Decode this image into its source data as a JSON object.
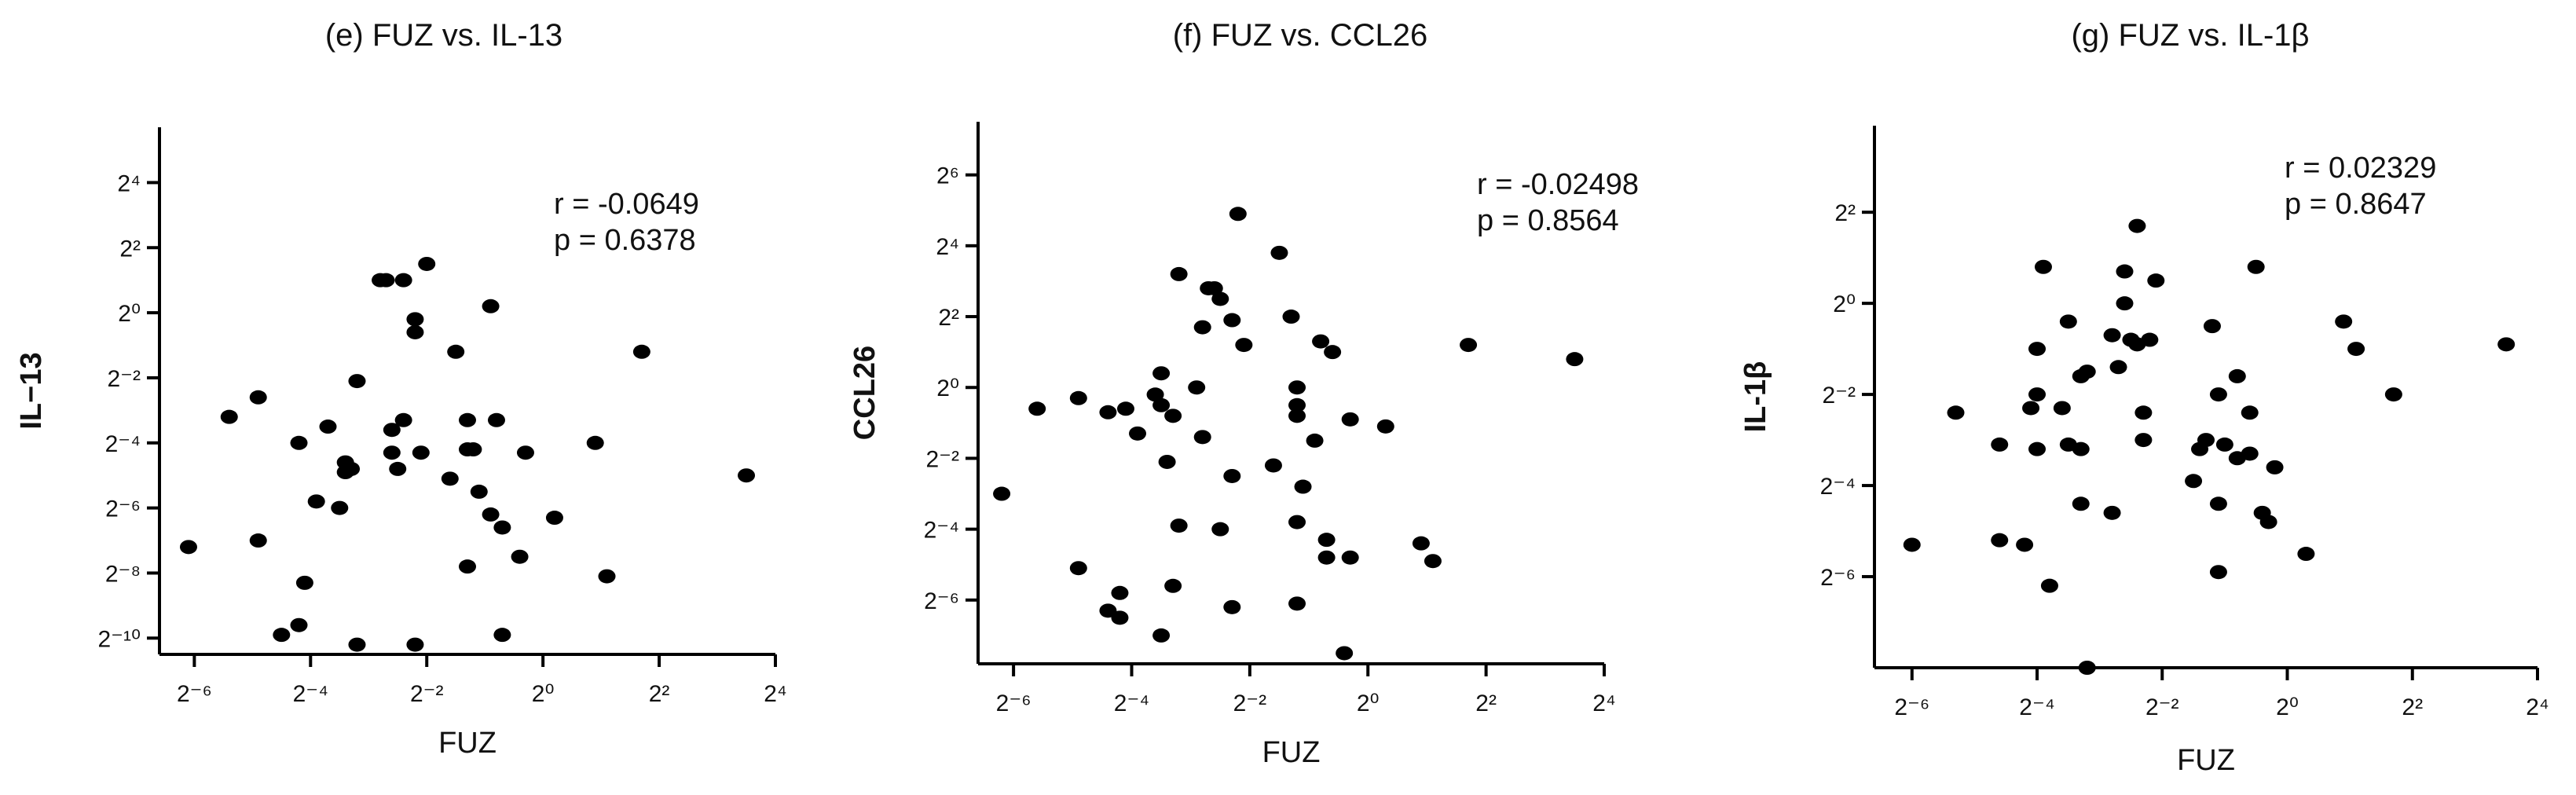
{
  "colors": {
    "point": "#000000",
    "axis": "#000000",
    "text": "#111111",
    "background": "#ffffff"
  },
  "chart_data": [
    {
      "type": "scatter",
      "title": "(e) FUZ vs. IL-13",
      "xlabel": "FUZ",
      "ylabel": "IL−13",
      "x_scale": "log2",
      "y_scale": "log2",
      "xlim_log2": [
        -6.6,
        4
      ],
      "ylim_log2": [
        -10.5,
        5.7
      ],
      "x_ticks": [
        {
          "exp": -6,
          "label": "2⁻⁶"
        },
        {
          "exp": -4,
          "label": "2⁻⁴"
        },
        {
          "exp": -2,
          "label": "2⁻²"
        },
        {
          "exp": 0,
          "label": "2⁰"
        },
        {
          "exp": 2,
          "label": "2²"
        },
        {
          "exp": 4,
          "label": "2⁴"
        }
      ],
      "y_ticks": [
        {
          "exp": 4,
          "label": "2⁴"
        },
        {
          "exp": 2,
          "label": "2²"
        },
        {
          "exp": 0,
          "label": "2⁰"
        },
        {
          "exp": -2,
          "label": "2⁻²"
        },
        {
          "exp": -4,
          "label": "2⁻⁴"
        },
        {
          "exp": -6,
          "label": "2⁻⁶"
        },
        {
          "exp": -8,
          "label": "2⁻⁸"
        },
        {
          "exp": -10,
          "label": "2⁻¹⁰"
        }
      ],
      "annotation": [
        "r = -0.0649",
        "p = 0.6378"
      ],
      "points_log2": [
        [
          -6.1,
          -7.2
        ],
        [
          -5.4,
          -3.2
        ],
        [
          -4.9,
          -7.0
        ],
        [
          -4.9,
          -2.6
        ],
        [
          -4.5,
          -9.9
        ],
        [
          -4.2,
          -4.0
        ],
        [
          -4.2,
          -9.6
        ],
        [
          -4.1,
          -8.3
        ],
        [
          -3.9,
          -5.8
        ],
        [
          -3.7,
          -3.5
        ],
        [
          -3.5,
          -6.0
        ],
        [
          -3.4,
          -4.6
        ],
        [
          -3.4,
          -4.9
        ],
        [
          -3.3,
          -4.8
        ],
        [
          -3.2,
          -2.1
        ],
        [
          -3.2,
          -10.2
        ],
        [
          -2.8,
          1.0
        ],
        [
          -2.7,
          1.0
        ],
        [
          -2.6,
          -3.6
        ],
        [
          -2.6,
          -4.3
        ],
        [
          -2.5,
          -4.8
        ],
        [
          -2.4,
          1.0
        ],
        [
          -2.4,
          -3.3
        ],
        [
          -2.2,
          -0.6
        ],
        [
          -2.2,
          -0.2
        ],
        [
          -2.2,
          -10.2
        ],
        [
          -2.1,
          -4.3
        ],
        [
          -2.0,
          1.5
        ],
        [
          -1.6,
          -5.1
        ],
        [
          -1.5,
          -1.2
        ],
        [
          -1.3,
          -4.2
        ],
        [
          -1.3,
          -3.3
        ],
        [
          -1.3,
          -7.8
        ],
        [
          -1.2,
          -4.2
        ],
        [
          -1.1,
          -5.5
        ],
        [
          -0.9,
          0.2
        ],
        [
          -0.9,
          -6.2
        ],
        [
          -0.8,
          -3.3
        ],
        [
          -0.7,
          -6.6
        ],
        [
          -0.7,
          -9.9
        ],
        [
          -0.4,
          -7.5
        ],
        [
          -0.3,
          -4.3
        ],
        [
          0.2,
          -6.3
        ],
        [
          0.9,
          -4.0
        ],
        [
          1.1,
          -8.1
        ],
        [
          1.7,
          -1.2
        ],
        [
          3.5,
          -5.0
        ]
      ]
    },
    {
      "type": "scatter",
      "title": "(f) FUZ vs. CCL26",
      "xlabel": "FUZ",
      "ylabel": "CCL26",
      "x_scale": "log2",
      "y_scale": "log2",
      "xlim_log2": [
        -6.6,
        4
      ],
      "ylim_log2": [
        -7.8,
        7.5
      ],
      "x_ticks": [
        {
          "exp": -6,
          "label": "2⁻⁶"
        },
        {
          "exp": -4,
          "label": "2⁻⁴"
        },
        {
          "exp": -2,
          "label": "2⁻²"
        },
        {
          "exp": 0,
          "label": "2⁰"
        },
        {
          "exp": 2,
          "label": "2²"
        },
        {
          "exp": 4,
          "label": "2⁴"
        }
      ],
      "y_ticks": [
        {
          "exp": 6,
          "label": "2⁶"
        },
        {
          "exp": 4,
          "label": "2⁴"
        },
        {
          "exp": 2,
          "label": "2²"
        },
        {
          "exp": 0,
          "label": "2⁰"
        },
        {
          "exp": -2,
          "label": "2⁻²"
        },
        {
          "exp": -4,
          "label": "2⁻⁴"
        },
        {
          "exp": -6,
          "label": "2⁻⁶"
        }
      ],
      "annotation": [
        "r = -0.02498",
        "p = 0.8564"
      ],
      "points_log2": [
        [
          -6.2,
          -3.0
        ],
        [
          -5.6,
          -0.6
        ],
        [
          -4.9,
          -0.3
        ],
        [
          -4.9,
          -5.1
        ],
        [
          -4.4,
          -0.7
        ],
        [
          -4.4,
          -6.3
        ],
        [
          -4.2,
          -6.5
        ],
        [
          -4.2,
          -5.8
        ],
        [
          -4.1,
          -0.6
        ],
        [
          -3.9,
          -1.3
        ],
        [
          -3.6,
          -0.2
        ],
        [
          -3.5,
          0.4
        ],
        [
          -3.5,
          -0.5
        ],
        [
          -3.5,
          -7.0
        ],
        [
          -3.4,
          -2.1
        ],
        [
          -3.3,
          -0.8
        ],
        [
          -3.3,
          -5.6
        ],
        [
          -3.2,
          3.2
        ],
        [
          -3.2,
          -3.9
        ],
        [
          -2.9,
          0.0
        ],
        [
          -2.8,
          -1.4
        ],
        [
          -2.8,
          1.7
        ],
        [
          -2.7,
          2.8
        ],
        [
          -2.6,
          2.8
        ],
        [
          -2.5,
          2.5
        ],
        [
          -2.5,
          -4.0
        ],
        [
          -2.3,
          1.9
        ],
        [
          -2.3,
          -2.5
        ],
        [
          -2.3,
          -6.2
        ],
        [
          -2.2,
          4.9
        ],
        [
          -2.1,
          1.2
        ],
        [
          -1.6,
          -2.2
        ],
        [
          -1.5,
          3.8
        ],
        [
          -1.3,
          2.0
        ],
        [
          -1.2,
          0.0
        ],
        [
          -1.2,
          -0.5
        ],
        [
          -1.2,
          -0.8
        ],
        [
          -1.2,
          -3.8
        ],
        [
          -1.1,
          -2.8
        ],
        [
          -1.2,
          -6.1
        ],
        [
          -0.9,
          -1.5
        ],
        [
          -0.8,
          1.3
        ],
        [
          -0.7,
          -4.3
        ],
        [
          -0.6,
          1.0
        ],
        [
          -0.7,
          -4.8
        ],
        [
          -0.4,
          -7.5
        ],
        [
          -0.3,
          -0.9
        ],
        [
          -0.3,
          -4.8
        ],
        [
          0.3,
          -1.1
        ],
        [
          0.9,
          -4.4
        ],
        [
          1.1,
          -4.9
        ],
        [
          1.7,
          1.2
        ],
        [
          3.5,
          0.8
        ]
      ]
    },
    {
      "type": "scatter",
      "title": "(g) FUZ vs. IL-1β",
      "xlabel": "FUZ",
      "ylabel": "IL-1β",
      "x_scale": "log2",
      "y_scale": "log2",
      "xlim_log2": [
        -6.6,
        4
      ],
      "ylim_log2": [
        -8.0,
        3.9
      ],
      "x_ticks": [
        {
          "exp": -6,
          "label": "2⁻⁶"
        },
        {
          "exp": -4,
          "label": "2⁻⁴"
        },
        {
          "exp": -2,
          "label": "2⁻²"
        },
        {
          "exp": 0,
          "label": "2⁰"
        },
        {
          "exp": 2,
          "label": "2²"
        },
        {
          "exp": 4,
          "label": "2⁴"
        }
      ],
      "y_ticks": [
        {
          "exp": 6,
          "label": "2⁶"
        },
        {
          "exp": 4,
          "label": "2⁴"
        },
        {
          "exp": 2,
          "label": "2²"
        },
        {
          "exp": 0,
          "label": "2⁰"
        },
        {
          "exp": -2,
          "label": "2⁻²"
        },
        {
          "exp": -4,
          "label": "2⁻⁴"
        },
        {
          "exp": -6,
          "label": "2⁻⁶"
        }
      ],
      "annotation": [
        "r = 0.02329",
        "p = 0.8647"
      ],
      "points_log2": [
        [
          -6.0,
          -5.3
        ],
        [
          -5.3,
          -2.4
        ],
        [
          -4.6,
          -3.1
        ],
        [
          -4.6,
          -5.2
        ],
        [
          -4.2,
          -5.3
        ],
        [
          -4.1,
          -2.3
        ],
        [
          -4.0,
          -2.0
        ],
        [
          -4.0,
          -3.2
        ],
        [
          -4.0,
          -1.0
        ],
        [
          -3.9,
          0.8
        ],
        [
          -3.8,
          -6.2
        ],
        [
          -3.6,
          -2.3
        ],
        [
          -3.5,
          -0.4
        ],
        [
          -3.5,
          -3.1
        ],
        [
          -3.3,
          -1.6
        ],
        [
          -3.3,
          -3.2
        ],
        [
          -3.3,
          -4.4
        ],
        [
          -3.2,
          -1.5
        ],
        [
          -3.2,
          -8.0
        ],
        [
          -2.8,
          -4.6
        ],
        [
          -2.8,
          -0.7
        ],
        [
          -2.7,
          -1.4
        ],
        [
          -2.6,
          0.0
        ],
        [
          -2.6,
          0.7
        ],
        [
          -2.5,
          -0.8
        ],
        [
          -2.4,
          -0.9
        ],
        [
          -2.4,
          1.7
        ],
        [
          -2.3,
          -2.4
        ],
        [
          -2.3,
          -3.0
        ],
        [
          -2.2,
          -0.8
        ],
        [
          -2.1,
          0.5
        ],
        [
          -1.5,
          -3.9
        ],
        [
          -1.4,
          -3.2
        ],
        [
          -1.3,
          -3.0
        ],
        [
          -1.2,
          -0.5
        ],
        [
          -1.1,
          -4.4
        ],
        [
          -1.1,
          -2.0
        ],
        [
          -1.1,
          -5.9
        ],
        [
          -1.0,
          -3.1
        ],
        [
          -0.8,
          -3.4
        ],
        [
          -0.8,
          -1.6
        ],
        [
          -0.6,
          -2.4
        ],
        [
          -0.6,
          -3.3
        ],
        [
          -0.5,
          0.8
        ],
        [
          -0.4,
          -4.6
        ],
        [
          -0.3,
          -4.8
        ],
        [
          -0.2,
          -3.6
        ],
        [
          0.3,
          -5.5
        ],
        [
          0.9,
          -0.4
        ],
        [
          1.1,
          -1.0
        ],
        [
          1.7,
          -2.0
        ],
        [
          3.5,
          -0.9
        ]
      ]
    }
  ]
}
